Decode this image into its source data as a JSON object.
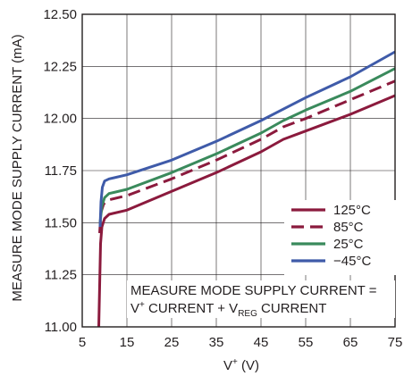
{
  "chart_data": {
    "type": "line",
    "xlabel": "V",
    "xlabel_sup": "+",
    "xlabel_unit": " (V)",
    "ylabel": "MEASURE MODE SUPPLY CURRENT (mA)",
    "xlim": [
      5,
      75
    ],
    "ylim": [
      11.0,
      12.5
    ],
    "x_ticks": [
      5,
      15,
      25,
      35,
      45,
      55,
      65,
      75
    ],
    "y_ticks": [
      11.0,
      11.25,
      11.5,
      11.75,
      12.0,
      12.25,
      12.5
    ],
    "y_tick_labels": [
      "11.00",
      "11.25",
      "11.50",
      "11.75",
      "12.00",
      "12.25",
      "12.50"
    ],
    "grid": true,
    "legend_position": "lower-right",
    "series": [
      {
        "name": "125°C",
        "color": "#8b1a3d",
        "dash": "solid",
        "points": [
          [
            8.7,
            11.0
          ],
          [
            8.9,
            11.2
          ],
          [
            9.1,
            11.4
          ],
          [
            9.4,
            11.48
          ],
          [
            10,
            11.52
          ],
          [
            11,
            11.54
          ],
          [
            15,
            11.56
          ],
          [
            25,
            11.65
          ],
          [
            35,
            11.74
          ],
          [
            45,
            11.84
          ],
          [
            50,
            11.9
          ],
          [
            55,
            11.94
          ],
          [
            65,
            12.02
          ],
          [
            75,
            12.11
          ]
        ]
      },
      {
        "name": "85°C",
        "color": "#8b1a3d",
        "dash": "dashed",
        "points": [
          [
            8.9,
            11.45
          ],
          [
            9.2,
            11.55
          ],
          [
            9.8,
            11.59
          ],
          [
            11,
            11.61
          ],
          [
            15,
            11.63
          ],
          [
            25,
            11.71
          ],
          [
            35,
            11.8
          ],
          [
            45,
            11.9
          ],
          [
            50,
            11.96
          ],
          [
            55,
            12.0
          ],
          [
            65,
            12.09
          ],
          [
            75,
            12.18
          ]
        ]
      },
      {
        "name": "25°C",
        "color": "#3a8a5c",
        "dash": "solid",
        "points": [
          [
            9.0,
            11.5
          ],
          [
            9.4,
            11.58
          ],
          [
            10,
            11.62
          ],
          [
            11,
            11.64
          ],
          [
            15,
            11.66
          ],
          [
            25,
            11.74
          ],
          [
            35,
            11.83
          ],
          [
            45,
            11.93
          ],
          [
            50,
            11.99
          ],
          [
            55,
            12.04
          ],
          [
            65,
            12.13
          ],
          [
            75,
            12.24
          ]
        ]
      },
      {
        "name": "−45°C",
        "color": "#3f5ba9",
        "dash": "solid",
        "points": [
          [
            9.0,
            11.48
          ],
          [
            9.2,
            11.6
          ],
          [
            9.5,
            11.67
          ],
          [
            10,
            11.7
          ],
          [
            11,
            11.71
          ],
          [
            15,
            11.73
          ],
          [
            25,
            11.8
          ],
          [
            35,
            11.89
          ],
          [
            45,
            11.99
          ],
          [
            55,
            12.1
          ],
          [
            65,
            12.2
          ],
          [
            75,
            12.32
          ]
        ]
      }
    ],
    "annotation_line1": "MEASURE MODE SUPPLY CURRENT =",
    "annotation_line2_a": "V",
    "annotation_line2_sup": "+",
    "annotation_line2_b": " CURRENT + V",
    "annotation_line2_sub": "REG",
    "annotation_line2_c": " CURRENT"
  }
}
